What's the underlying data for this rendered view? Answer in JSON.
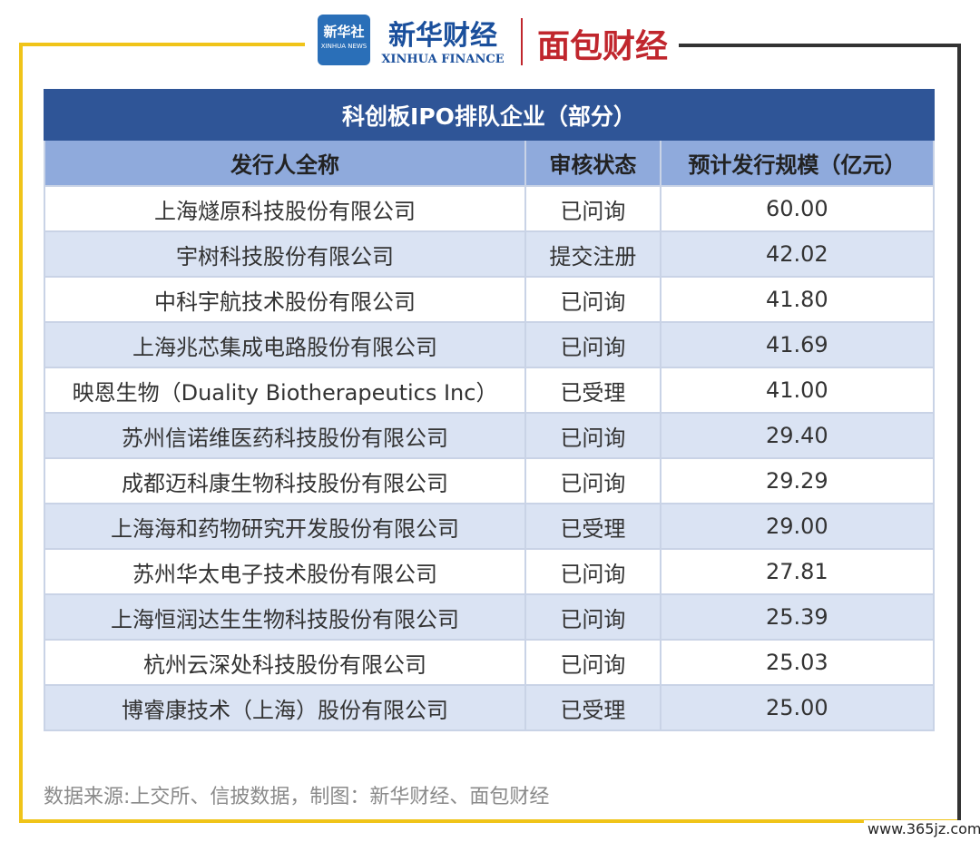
{
  "header": {
    "logo1_cn": "新华社",
    "logo1_en": "XINHUA NEWS",
    "logo2_cn": "新华财经",
    "logo2_en": "XINHUA FINANCE",
    "logo3": "面包财经"
  },
  "table": {
    "title": "科创板IPO排队企业（部分）",
    "columns": [
      "发行人全称",
      "审核状态",
      "预计发行规模（亿元）"
    ],
    "rows": [
      [
        "上海燧原科技股份有限公司",
        "已问询",
        "60.00"
      ],
      [
        "宇树科技股份有限公司",
        "提交注册",
        "42.02"
      ],
      [
        "中科宇航技术股份有限公司",
        "已问询",
        "41.80"
      ],
      [
        "上海兆芯集成电路股份有限公司",
        "已问询",
        "41.69"
      ],
      [
        "映恩生物（Duality Biotherapeutics Inc）",
        "已受理",
        "41.00"
      ],
      [
        "苏州信诺维医药科技股份有限公司",
        "已问询",
        "29.40"
      ],
      [
        "成都迈科康生物科技股份有限公司",
        "已问询",
        "29.29"
      ],
      [
        "上海海和药物研究开发股份有限公司",
        "已受理",
        "29.00"
      ],
      [
        "苏州华太电子技术股份有限公司",
        "已问询",
        "27.81"
      ],
      [
        "上海恒润达生生物科技股份有限公司",
        "已问询",
        "25.39"
      ],
      [
        "杭州云深处科技股份有限公司",
        "已问询",
        "25.03"
      ],
      [
        "博睿康技术（上海）股份有限公司",
        "已受理",
        "25.00"
      ]
    ]
  },
  "footer": {
    "source": "数据来源:上交所、信披数据，制图：新华财经、面包财经",
    "watermark": "www.365jz.com"
  }
}
